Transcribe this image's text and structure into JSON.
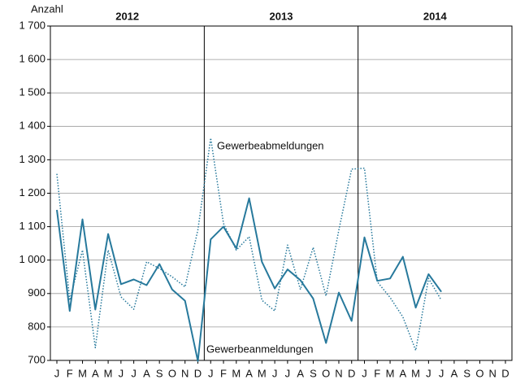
{
  "chart_data": {
    "type": "line",
    "y_axis_label": "Anzahl",
    "year_labels": [
      "2012",
      "2013",
      "2014"
    ],
    "categories": [
      "J",
      "F",
      "M",
      "A",
      "M",
      "J",
      "J",
      "A",
      "S",
      "O",
      "N",
      "D",
      "J",
      "F",
      "M",
      "A",
      "M",
      "J",
      "J",
      "A",
      "S",
      "O",
      "N",
      "D",
      "J",
      "F",
      "M",
      "A",
      "M",
      "J",
      "J",
      "A",
      "S",
      "O",
      "N",
      "D"
    ],
    "series": [
      {
        "name": "Gewerbeanmeldungen",
        "color": "#27799c",
        "style": "solid",
        "values": [
          1150,
          848,
          1122,
          852,
          1078,
          928,
          942,
          925,
          988,
          912,
          878,
          698,
          1062,
          1100,
          1035,
          1185,
          995,
          915,
          972,
          940,
          885,
          752,
          903,
          818,
          1068,
          938,
          945,
          1010,
          858,
          958,
          905,
          null,
          null,
          null,
          null,
          null
        ]
      },
      {
        "name": "Gewerbeabmeldungen",
        "color": "#27799c",
        "style": "dotted",
        "values": [
          1258,
          880,
          1030,
          738,
          1030,
          890,
          853,
          995,
          975,
          950,
          920,
          1090,
          1365,
          1110,
          1030,
          1070,
          880,
          848,
          1045,
          912,
          1038,
          893,
          1090,
          1272,
          1275,
          935,
          888,
          830,
          730,
          945,
          880,
          null,
          null,
          null,
          null,
          null
        ]
      }
    ],
    "ylim": [
      700,
      1700
    ],
    "yticks": [
      {
        "value": 700,
        "label": "700"
      },
      {
        "value": 800,
        "label": "800"
      },
      {
        "value": 900,
        "label": "900"
      },
      {
        "value": 1000,
        "label": "1 000"
      },
      {
        "value": 1100,
        "label": "1 100"
      },
      {
        "value": 1200,
        "label": "1 200"
      },
      {
        "value": 1300,
        "label": "1 300"
      },
      {
        "value": 1400,
        "label": "1 400"
      },
      {
        "value": 1500,
        "label": "1 500"
      },
      {
        "value": 1600,
        "label": "1 600"
      },
      {
        "value": 1700,
        "label": "1 700"
      }
    ],
    "grid": true
  }
}
